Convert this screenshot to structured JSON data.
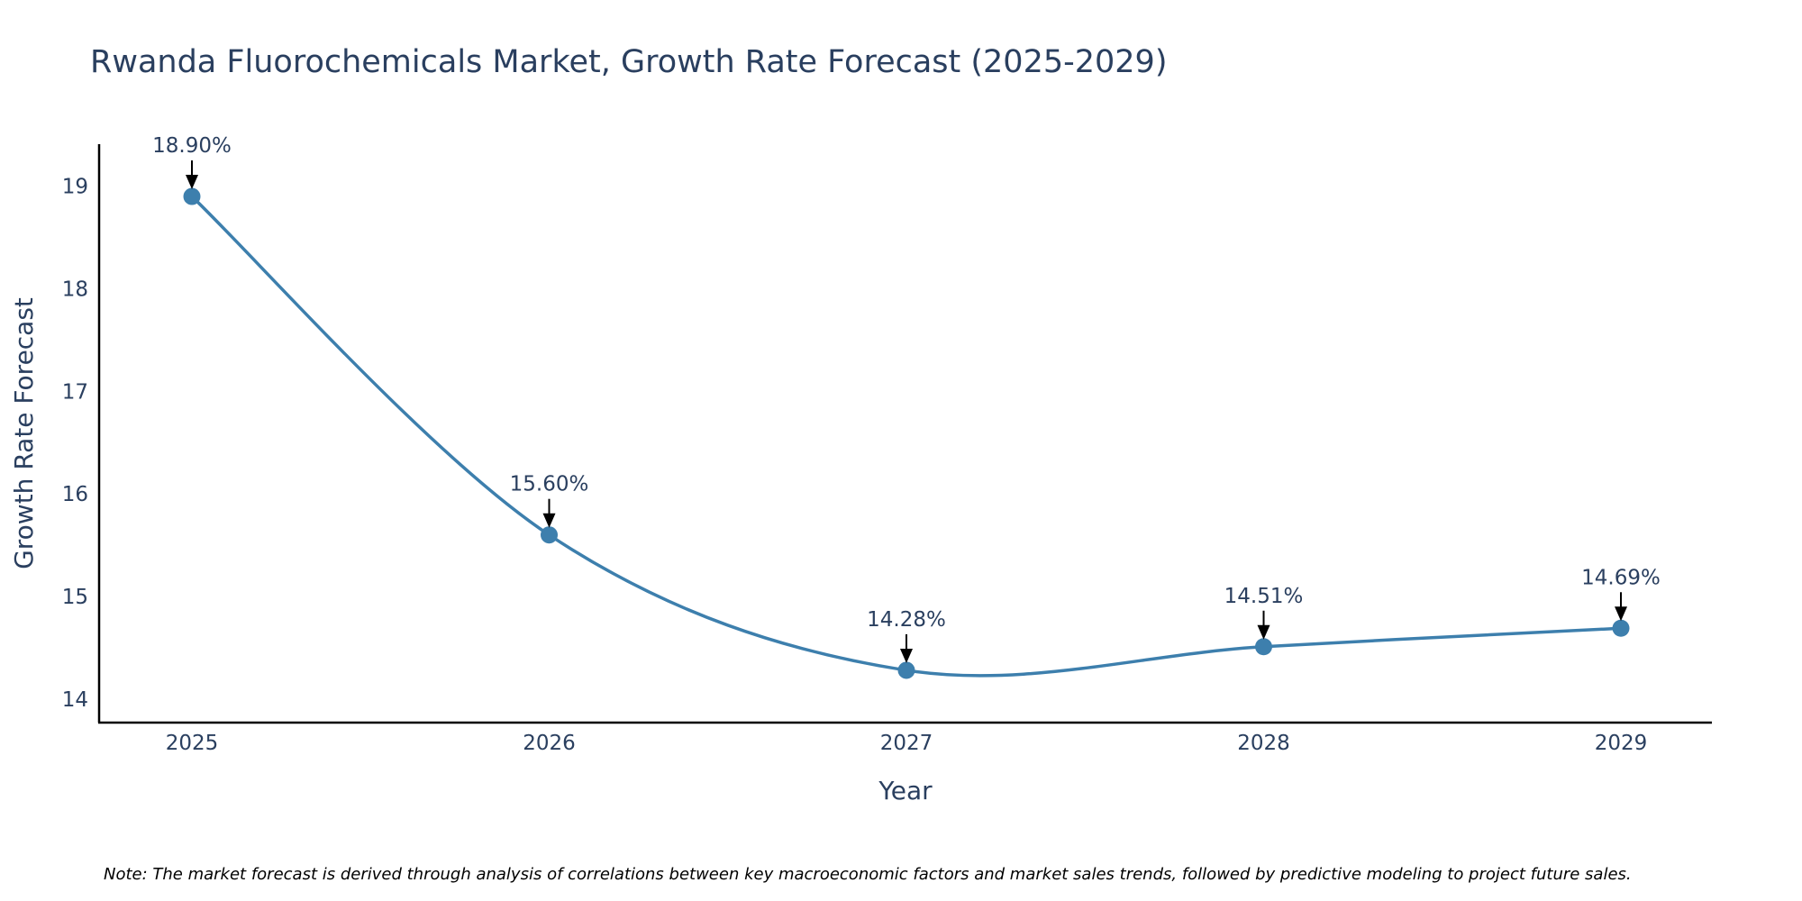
{
  "chart_data": {
    "type": "line",
    "title": "Rwanda Fluorochemicals Market, Growth Rate Forecast (2025-2029)",
    "xlabel": "Year",
    "ylabel": "Growth Rate Forecast",
    "categories": [
      "2025",
      "2026",
      "2027",
      "2028",
      "2029"
    ],
    "series": [
      {
        "name": "Growth Rate Forecast",
        "values": [
          18.9,
          15.6,
          14.28,
          14.51,
          14.69
        ],
        "labels": [
          "18.90%",
          "15.60%",
          "14.28%",
          "14.51%",
          "14.69%"
        ]
      }
    ],
    "yticks": [
      14,
      15,
      16,
      17,
      18,
      19
    ],
    "ylim": [
      13.77,
      19.41
    ],
    "grid": false,
    "line_shape": "spline",
    "colors": {
      "line": "#3d7fad",
      "marker": "#3d7fad",
      "axis": "#000000",
      "text": "#2a3f5f",
      "arrow": "#000000"
    }
  },
  "note": "Note: The market forecast is derived through analysis of correlations between key macroeconomic factors and market sales trends, followed by predictive modeling to project future sales."
}
